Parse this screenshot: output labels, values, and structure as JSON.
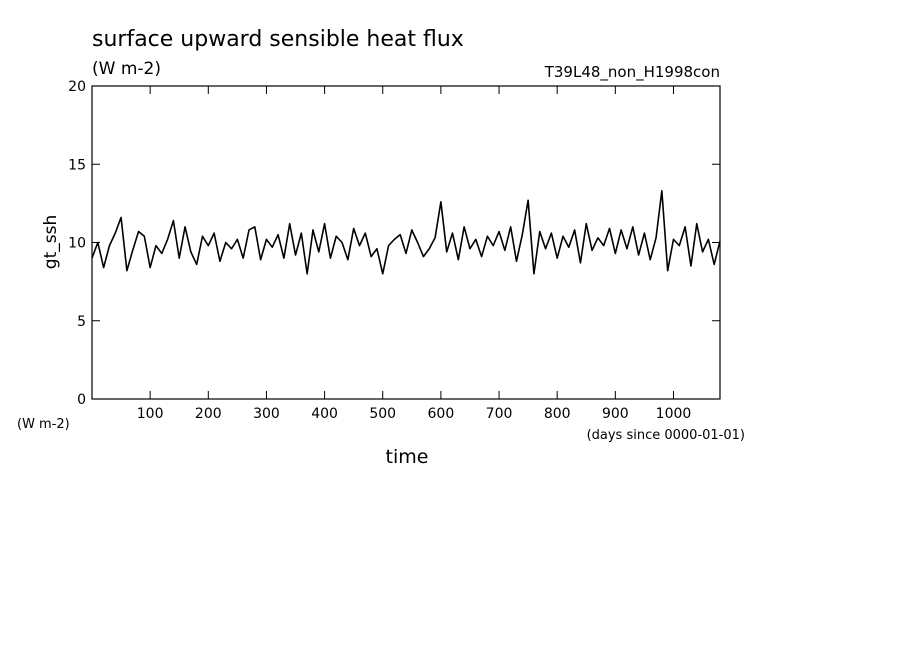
{
  "chart_data": {
    "type": "line",
    "title": "surface upward sensible heat flux",
    "subtitle": "(W m-2)",
    "run_label": "T39L48_non_H1998con",
    "ylabel": "gt_ssh",
    "y_units": "(W m-2)",
    "xlabel": "time",
    "x_units": "(days since 0000-01-01)",
    "color": "#000000",
    "xlim": [
      0,
      1080
    ],
    "xticks": [
      100,
      200,
      300,
      400,
      500,
      600,
      700,
      800,
      900,
      1000
    ],
    "ylim": [
      0,
      20
    ],
    "yticks": [
      0,
      5,
      10,
      15,
      20
    ],
    "x": [
      0,
      10,
      20,
      30,
      40,
      50,
      60,
      70,
      80,
      90,
      100,
      110,
      120,
      130,
      140,
      150,
      160,
      170,
      180,
      190,
      200,
      210,
      220,
      230,
      240,
      250,
      260,
      270,
      280,
      290,
      300,
      310,
      320,
      330,
      340,
      350,
      360,
      370,
      380,
      390,
      400,
      410,
      420,
      430,
      440,
      450,
      460,
      470,
      480,
      490,
      500,
      510,
      520,
      530,
      540,
      550,
      560,
      570,
      580,
      590,
      600,
      610,
      620,
      630,
      640,
      650,
      660,
      670,
      680,
      690,
      700,
      710,
      720,
      730,
      740,
      750,
      760,
      770,
      780,
      790,
      800,
      810,
      820,
      830,
      840,
      850,
      860,
      870,
      880,
      890,
      900,
      910,
      920,
      930,
      940,
      950,
      960,
      970,
      980,
      990,
      1000,
      1010,
      1020,
      1030,
      1040,
      1050,
      1060,
      1070,
      1080
    ],
    "values": [
      9.0,
      10.0,
      8.4,
      9.8,
      10.6,
      11.6,
      8.2,
      9.5,
      10.7,
      10.4,
      8.4,
      9.8,
      9.3,
      10.2,
      11.4,
      9.0,
      11.0,
      9.4,
      8.6,
      10.4,
      9.8,
      10.6,
      8.8,
      10.0,
      9.6,
      10.2,
      9.0,
      10.8,
      11.0,
      8.9,
      10.2,
      9.7,
      10.5,
      9.0,
      11.2,
      9.2,
      10.6,
      8.0,
      10.8,
      9.4,
      11.2,
      9.0,
      10.4,
      10.0,
      8.9,
      10.9,
      9.8,
      10.6,
      9.1,
      9.6,
      8.0,
      9.8,
      10.2,
      10.5,
      9.3,
      10.8,
      10.0,
      9.1,
      9.6,
      10.3,
      12.6,
      9.4,
      10.6,
      8.9,
      11.0,
      9.6,
      10.2,
      9.1,
      10.4,
      9.8,
      10.7,
      9.5,
      11.0,
      8.8,
      10.5,
      12.7,
      8.0,
      10.7,
      9.6,
      10.6,
      9.0,
      10.4,
      9.7,
      10.8,
      8.7,
      11.2,
      9.5,
      10.3,
      9.8,
      10.9,
      9.3,
      10.8,
      9.6,
      11.0,
      9.2,
      10.6,
      8.9,
      10.3,
      13.3,
      8.2,
      10.2,
      9.8,
      11.0,
      8.5,
      11.2,
      9.4,
      10.2,
      8.6,
      10.1
    ]
  }
}
